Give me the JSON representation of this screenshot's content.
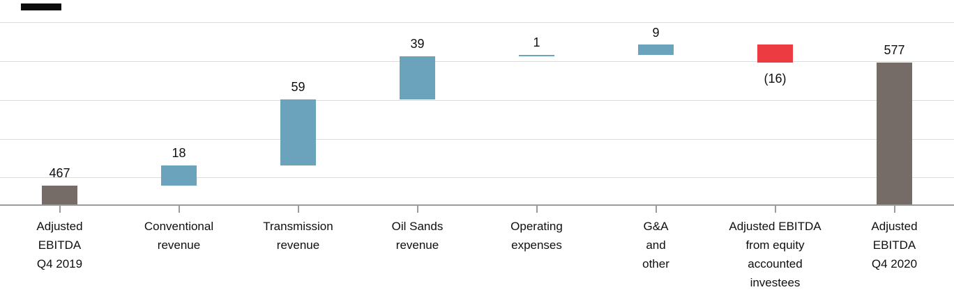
{
  "chart_data": {
    "type": "bar",
    "subtype": "waterfall",
    "title": "",
    "xlabel": "",
    "ylabel": "",
    "legend": "none",
    "grid": "horizontal",
    "y_axis": {
      "visible": false,
      "min": 450,
      "max": 633
    },
    "categories": [
      "Adjusted EBITDA Q4 2019",
      "Conventional revenue",
      "Transmission revenue",
      "Oil Sands revenue",
      "Operating expenses",
      "G&A and other",
      "Adjusted EBITDA from equity accounted investees",
      "Adjusted EBITDA Q4 2020"
    ],
    "category_lines": [
      [
        "Adjusted",
        "EBITDA",
        "Q4 2019"
      ],
      [
        "Conventional",
        "revenue"
      ],
      [
        "Transmission",
        "revenue"
      ],
      [
        "Oil Sands",
        "revenue"
      ],
      [
        "Operating",
        "expenses"
      ],
      [
        "G&A",
        "and",
        "other"
      ],
      [
        "Adjusted EBITDA",
        "from equity",
        "accounted",
        "investees"
      ],
      [
        "Adjusted",
        "EBITDA",
        "Q4 2020"
      ]
    ],
    "values": [
      467,
      18,
      59,
      39,
      1,
      9,
      -16,
      577
    ],
    "value_labels": [
      "467",
      "18",
      "59",
      "39",
      "1",
      "9",
      "(16)",
      "577"
    ],
    "bar_roles": [
      "total",
      "increase",
      "increase",
      "increase",
      "increase",
      "increase",
      "decrease",
      "total"
    ],
    "colors": {
      "total": "#766c67",
      "increase": "#6ba3bd",
      "decrease": "#ec3c42",
      "gridline": "#dcdcdc",
      "axis": "#9a9a9a",
      "text": "#0f0f0f"
    }
  }
}
